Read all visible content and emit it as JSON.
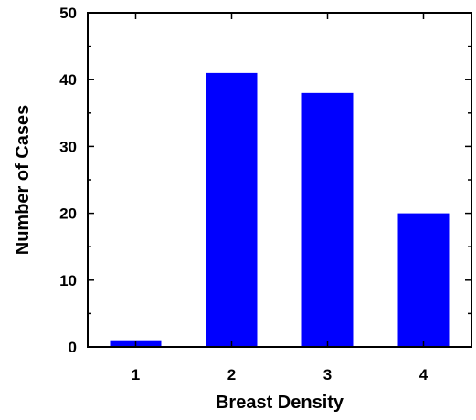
{
  "chart_data": {
    "type": "bar",
    "categories": [
      "1",
      "2",
      "3",
      "4"
    ],
    "values": [
      1,
      41,
      38,
      20
    ],
    "xlabel": "Breast Density",
    "ylabel": "Number of Cases",
    "ylim": [
      0,
      50
    ],
    "yticks": [
      0,
      10,
      20,
      30,
      40,
      50
    ],
    "bar_color": "#0000ff",
    "grid": false,
    "legend": "none"
  }
}
